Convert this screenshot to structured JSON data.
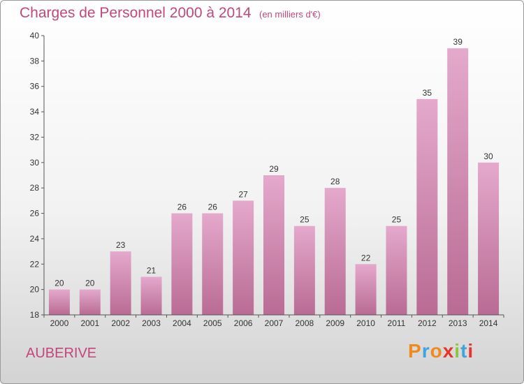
{
  "header": {
    "title": "Charges de Personnel 2000 à 2014",
    "unit": "(en milliers d'€)"
  },
  "footer": {
    "commune": "AUBERIVE",
    "logo_text": "Proxiti"
  },
  "colors": {
    "accent": "#c2477c",
    "bar_top": "#e4a9cc",
    "bar_bottom": "#b96b94",
    "logo_letters": [
      "#f08a1c",
      "#3fa3dc",
      "#f08a1c",
      "#e8332a",
      "#8cc63f",
      "#3fa3dc",
      "#e8332a"
    ]
  },
  "chart_data": {
    "type": "bar",
    "categories": [
      "2000",
      "2001",
      "2002",
      "2003",
      "2004",
      "2005",
      "2006",
      "2007",
      "2008",
      "2009",
      "2010",
      "2011",
      "2012",
      "2013",
      "2014"
    ],
    "values": [
      20,
      20,
      23,
      21,
      26,
      26,
      27,
      29,
      25,
      28,
      22,
      25,
      35,
      39,
      30
    ],
    "ylim": [
      18,
      40
    ],
    "yticks": [
      18,
      20,
      22,
      24,
      26,
      28,
      30,
      32,
      34,
      36,
      38,
      40
    ],
    "grid": false,
    "data_labels": true
  }
}
